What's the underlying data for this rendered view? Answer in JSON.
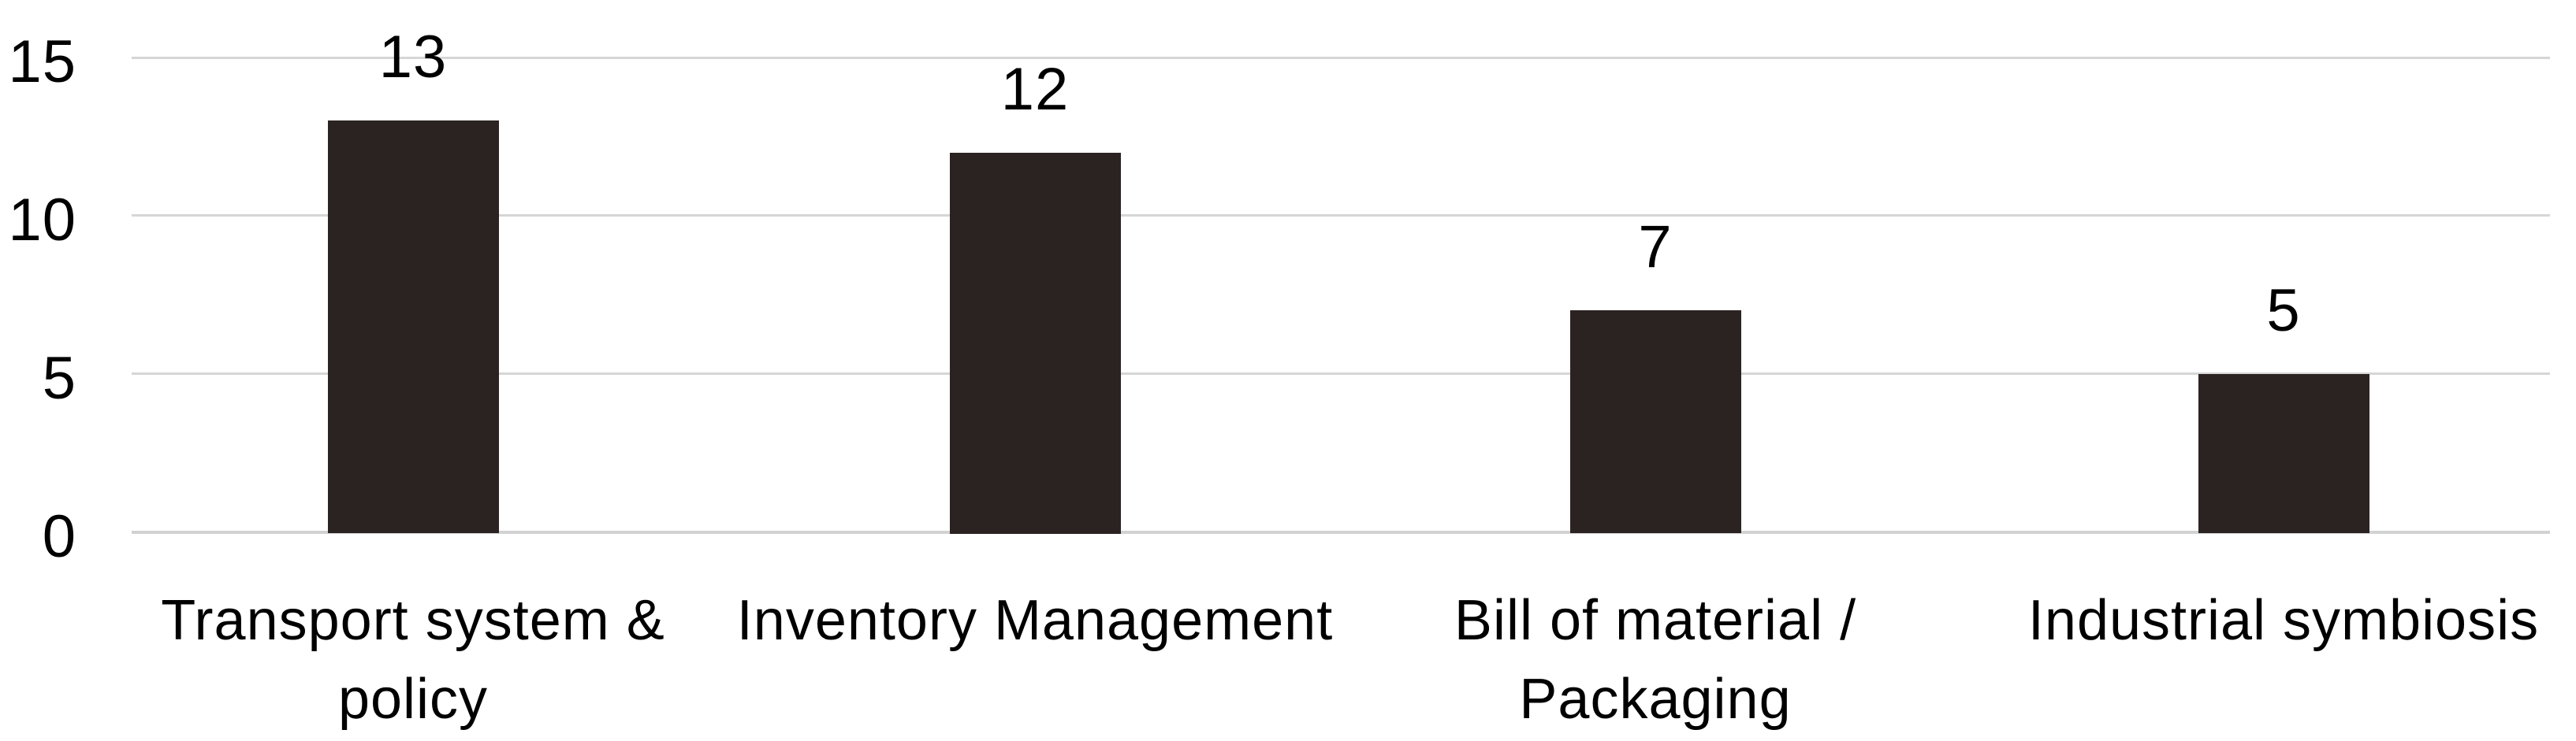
{
  "chart_data": {
    "type": "bar",
    "title": "",
    "xlabel": "",
    "ylabel": "",
    "categories": [
      "Transport system & policy",
      "Inventory Management",
      "Bill of material / Packaging",
      "Industrial symbiosis"
    ],
    "category_display": [
      "Transport system &\npolicy",
      "Inventory Management",
      "Bill of material /\nPackaging",
      "Industrial symbiosis"
    ],
    "values": [
      13,
      12,
      7,
      5
    ],
    "value_labels": [
      "13",
      "12",
      "7",
      "5"
    ],
    "yticks": [
      15,
      10,
      5,
      0
    ],
    "ytick_labels": [
      "15",
      "10",
      "5",
      "0"
    ],
    "ylim": [
      0,
      15
    ],
    "grid": true,
    "legend": false,
    "colors": {
      "bar": "#2B2322",
      "gridline": "#D6D6D6",
      "axis_line": "#D2D2D2",
      "text": "#000000",
      "background": "#FFFFFF"
    }
  }
}
